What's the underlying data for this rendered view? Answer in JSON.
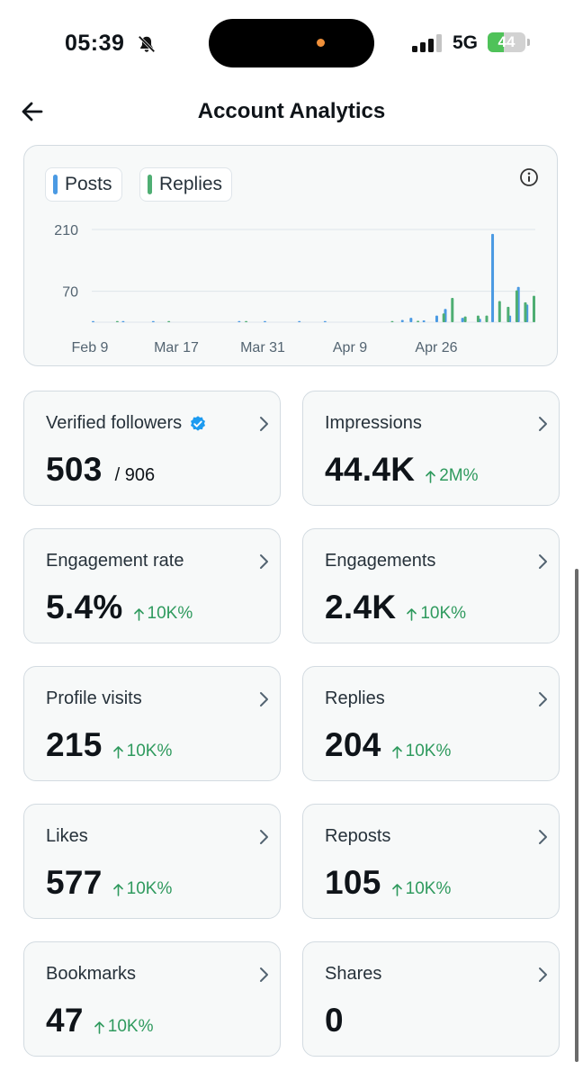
{
  "status_bar": {
    "time": "05:39",
    "network": "5G",
    "battery_percent": 44,
    "battery_label": "44"
  },
  "header": {
    "title": "Account Analytics"
  },
  "chart_data": {
    "type": "bar",
    "legend": [
      "Posts",
      "Replies"
    ],
    "colors": {
      "Posts": "#4b9ae3",
      "Replies": "#4fae73"
    },
    "x_ticks": [
      "Feb 9",
      "Mar 17",
      "Mar 31",
      "Apr 9",
      "Apr 26"
    ],
    "y_ticks": [
      210,
      70
    ],
    "ylim": [
      0,
      210
    ],
    "grid": true,
    "series": [
      {
        "name": "Posts",
        "points": [
          {
            "x": "Feb 9",
            "y": 1
          },
          {
            "x": "Feb 16",
            "y": 1
          },
          {
            "x": "Feb 23",
            "y": 1
          },
          {
            "x": "Mar 14",
            "y": 2
          },
          {
            "x": "Mar 20",
            "y": 1
          },
          {
            "x": "Mar 28",
            "y": 1
          },
          {
            "x": "Apr 3",
            "y": 1
          },
          {
            "x": "Apr 21",
            "y": 5
          },
          {
            "x": "Apr 23",
            "y": 10
          },
          {
            "x": "Apr 26",
            "y": 4
          },
          {
            "x": "Apr 29",
            "y": 15
          },
          {
            "x": "May 1",
            "y": 30
          },
          {
            "x": "May 5",
            "y": 10
          },
          {
            "x": "May 9",
            "y": 8
          },
          {
            "x": "May 12",
            "y": 200
          },
          {
            "x": "May 16",
            "y": 15
          },
          {
            "x": "May 18",
            "y": 80
          },
          {
            "x": "May 20",
            "y": 40
          }
        ]
      },
      {
        "name": "Replies",
        "points": [
          {
            "x": "Feb 14",
            "y": 1
          },
          {
            "x": "Feb 26",
            "y": 1
          },
          {
            "x": "Mar 15",
            "y": 1
          },
          {
            "x": "Apr 18",
            "y": 1
          },
          {
            "x": "Apr 24",
            "y": 3
          },
          {
            "x": "Apr 30",
            "y": 20
          },
          {
            "x": "May 2",
            "y": 55
          },
          {
            "x": "May 5",
            "y": 13
          },
          {
            "x": "May 8",
            "y": 15
          },
          {
            "x": "May 10",
            "y": 15
          },
          {
            "x": "May 13",
            "y": 48
          },
          {
            "x": "May 15",
            "y": 35
          },
          {
            "x": "May 17",
            "y": 72
          },
          {
            "x": "May 19",
            "y": 45
          },
          {
            "x": "May 21",
            "y": 60
          }
        ]
      }
    ]
  },
  "metrics": [
    {
      "label": "Verified followers",
      "value": "503",
      "total": "/ 906",
      "verified": true
    },
    {
      "label": "Impressions",
      "value": "44.4K",
      "change": "2M%"
    },
    {
      "label": "Engagement rate",
      "value": "5.4%",
      "change": "10K%"
    },
    {
      "label": "Engagements",
      "value": "2.4K",
      "change": "10K%"
    },
    {
      "label": "Profile visits",
      "value": "215",
      "change": "10K%"
    },
    {
      "label": "Replies",
      "value": "204",
      "change": "10K%"
    },
    {
      "label": "Likes",
      "value": "577",
      "change": "10K%"
    },
    {
      "label": "Reposts",
      "value": "105",
      "change": "10K%"
    },
    {
      "label": "Bookmarks",
      "value": "47",
      "change": "10K%"
    },
    {
      "label": "Shares",
      "value": "0"
    }
  ]
}
